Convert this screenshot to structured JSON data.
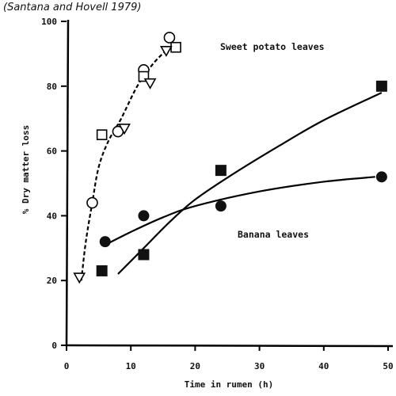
{
  "chart_data": {
    "type": "scatter",
    "caption": "(Santana and Hovell 1979)",
    "xlabel": "Time in rumen (h)",
    "ylabel": "% Dry matter loss",
    "xlim": [
      0,
      50
    ],
    "ylim": [
      0,
      100
    ],
    "x_ticks": [
      0,
      10,
      20,
      30,
      40,
      50
    ],
    "y_ticks": [
      0,
      20,
      40,
      60,
      80,
      100
    ],
    "grid": false,
    "annotations": [
      "Sweet potato leaves",
      "Banana leaves"
    ],
    "series": [
      {
        "marker": "open-circle",
        "points": [
          [
            4,
            44
          ],
          [
            8,
            66
          ],
          [
            12,
            85
          ],
          [
            16,
            95
          ]
        ]
      },
      {
        "marker": "open-square",
        "points": [
          [
            5.5,
            65
          ],
          [
            12,
            83
          ],
          [
            17,
            92
          ]
        ]
      },
      {
        "marker": "open-triangle",
        "points": [
          [
            2,
            21
          ],
          [
            9,
            67
          ],
          [
            13,
            81
          ],
          [
            15.5,
            91
          ]
        ]
      },
      {
        "marker": "filled-circle",
        "points": [
          [
            6,
            32
          ],
          [
            12,
            40
          ],
          [
            24,
            43
          ],
          [
            49,
            52
          ]
        ]
      },
      {
        "marker": "filled-square",
        "points": [
          [
            5.5,
            23
          ],
          [
            12,
            28
          ],
          [
            24,
            54
          ],
          [
            49,
            80
          ]
        ]
      }
    ],
    "fits": [
      {
        "style": "dashed",
        "points": [
          [
            2.3,
            20
          ],
          [
            3,
            32
          ],
          [
            4,
            44
          ],
          [
            5,
            55
          ],
          [
            6.5,
            63
          ],
          [
            8.5,
            70
          ],
          [
            11,
            80
          ],
          [
            13.5,
            87
          ],
          [
            16,
            92
          ]
        ]
      },
      {
        "style": "solid",
        "points": [
          [
            6,
            31
          ],
          [
            10,
            35
          ],
          [
            15,
            39.5
          ],
          [
            20,
            43
          ],
          [
            30,
            47.5
          ],
          [
            40,
            50.5
          ],
          [
            48,
            52
          ]
        ]
      },
      {
        "style": "solid",
        "points": [
          [
            8,
            22
          ],
          [
            12,
            30
          ],
          [
            16,
            38
          ],
          [
            20,
            45
          ],
          [
            26,
            53
          ],
          [
            33,
            61.5
          ],
          [
            40,
            69.5
          ],
          [
            49,
            78
          ]
        ]
      }
    ]
  }
}
